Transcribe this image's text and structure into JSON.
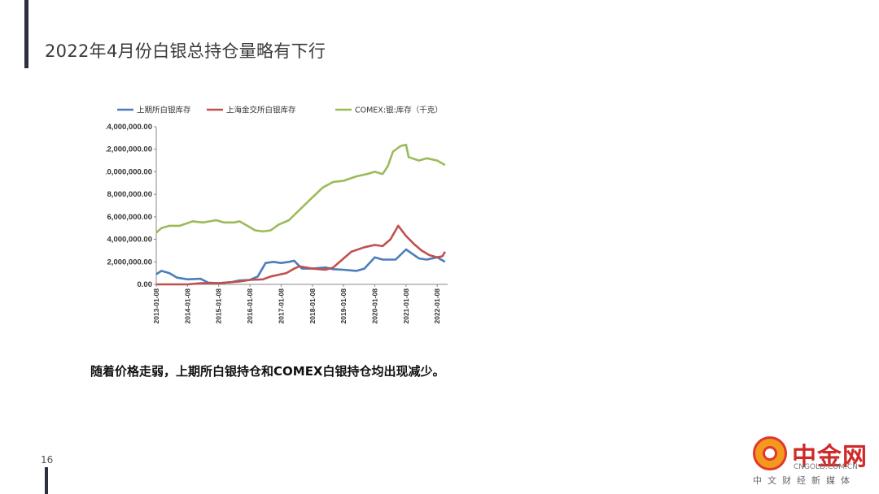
{
  "page": {
    "title": "2022年4月份白银总持仓量略有下行",
    "caption": "随着价格走弱，上期所白银持仓和COMEX白银持仓均出现减少。",
    "page_number": "16"
  },
  "brand": {
    "name": "中金网",
    "url": "CNGOLD.COM.CN",
    "slogan": "中文财经新媒体",
    "colors": {
      "red": "#cf2a2a",
      "orange": "#f39a1e"
    }
  },
  "chart_data": {
    "type": "line",
    "ylim": [
      0,
      14000000
    ],
    "yticks": [
      0,
      2000000,
      4000000,
      6000000,
      8000000,
      10000000,
      12000000,
      14000000
    ],
    "ytick_labels": [
      "0.00",
      "2,000,000.00",
      "4,000,000.00",
      "6,000,000.00",
      "8,000,000.00",
      "10,000,000.00",
      "12,000,000.00",
      "14,000,000.00"
    ],
    "xlim": [
      "2013-01",
      "2022-05"
    ],
    "xtick_labels": [
      "2013-01-08",
      "2014-01-08",
      "2015-01-08",
      "2016-01-08",
      "2017-01-08",
      "2018-01-08",
      "2019-01-08",
      "2020-01-08",
      "2021-01-08",
      "2022-01-08"
    ],
    "grid": false,
    "legend_position": "top",
    "series": [
      {
        "name": "上期所白银库存",
        "color": "#4a7ebb",
        "points": [
          [
            "2013-01",
            900000
          ],
          [
            "2013-03",
            1200000
          ],
          [
            "2013-06",
            1000000
          ],
          [
            "2013-09",
            600000
          ],
          [
            "2014-01",
            450000
          ],
          [
            "2014-06",
            500000
          ],
          [
            "2014-09",
            150000
          ],
          [
            "2015-01",
            100000
          ],
          [
            "2015-06",
            200000
          ],
          [
            "2015-09",
            350000
          ],
          [
            "2016-01",
            400000
          ],
          [
            "2016-04",
            700000
          ],
          [
            "2016-07",
            1900000
          ],
          [
            "2016-10",
            2000000
          ],
          [
            "2017-01",
            1900000
          ],
          [
            "2017-04",
            2000000
          ],
          [
            "2017-06",
            2100000
          ],
          [
            "2017-09",
            1400000
          ],
          [
            "2018-01",
            1400000
          ],
          [
            "2018-06",
            1500000
          ],
          [
            "2018-09",
            1350000
          ],
          [
            "2019-01",
            1300000
          ],
          [
            "2019-06",
            1200000
          ],
          [
            "2019-09",
            1400000
          ],
          [
            "2020-01",
            2400000
          ],
          [
            "2020-04",
            2200000
          ],
          [
            "2020-09",
            2200000
          ],
          [
            "2021-01",
            3100000
          ],
          [
            "2021-06",
            2300000
          ],
          [
            "2021-09",
            2200000
          ],
          [
            "2022-01",
            2400000
          ],
          [
            "2022-04",
            2000000
          ]
        ]
      },
      {
        "name": "上海金交所白银库存",
        "color": "#c0504d",
        "points": [
          [
            "2013-01",
            0
          ],
          [
            "2014-01",
            0
          ],
          [
            "2014-06",
            100000
          ],
          [
            "2015-01",
            100000
          ],
          [
            "2015-09",
            250000
          ],
          [
            "2016-01",
            400000
          ],
          [
            "2016-06",
            450000
          ],
          [
            "2016-09",
            700000
          ],
          [
            "2017-01",
            900000
          ],
          [
            "2017-03",
            1000000
          ],
          [
            "2017-06",
            1400000
          ],
          [
            "2017-08",
            1600000
          ],
          [
            "2018-01",
            1400000
          ],
          [
            "2018-06",
            1300000
          ],
          [
            "2018-09",
            1500000
          ],
          [
            "2019-01",
            2300000
          ],
          [
            "2019-04",
            2900000
          ],
          [
            "2019-09",
            3300000
          ],
          [
            "2020-01",
            3500000
          ],
          [
            "2020-04",
            3400000
          ],
          [
            "2020-07",
            4000000
          ],
          [
            "2020-10",
            5200000
          ],
          [
            "2021-01",
            4300000
          ],
          [
            "2021-04",
            3600000
          ],
          [
            "2021-07",
            3000000
          ],
          [
            "2021-10",
            2600000
          ],
          [
            "2022-01",
            2400000
          ],
          [
            "2022-03",
            2500000
          ],
          [
            "2022-04",
            2900000
          ]
        ]
      },
      {
        "name": "COMEX:银:库存（千克）",
        "color": "#9bbb59",
        "points": [
          [
            "2013-01",
            4600000
          ],
          [
            "2013-03",
            5000000
          ],
          [
            "2013-06",
            5200000
          ],
          [
            "2013-10",
            5200000
          ],
          [
            "2014-03",
            5600000
          ],
          [
            "2014-07",
            5500000
          ],
          [
            "2014-12",
            5700000
          ],
          [
            "2015-03",
            5500000
          ],
          [
            "2015-07",
            5500000
          ],
          [
            "2015-09",
            5600000
          ],
          [
            "2015-12",
            5200000
          ],
          [
            "2016-03",
            4800000
          ],
          [
            "2016-06",
            4700000
          ],
          [
            "2016-09",
            4800000
          ],
          [
            "2016-12",
            5300000
          ],
          [
            "2017-04",
            5700000
          ],
          [
            "2017-08",
            6600000
          ],
          [
            "2017-12",
            7500000
          ],
          [
            "2018-05",
            8600000
          ],
          [
            "2018-09",
            9100000
          ],
          [
            "2019-01",
            9200000
          ],
          [
            "2019-06",
            9600000
          ],
          [
            "2019-10",
            9800000
          ],
          [
            "2020-01",
            10000000
          ],
          [
            "2020-04",
            9800000
          ],
          [
            "2020-06",
            10500000
          ],
          [
            "2020-08",
            11800000
          ],
          [
            "2020-11",
            12300000
          ],
          [
            "2021-01",
            12400000
          ],
          [
            "2021-02",
            11300000
          ],
          [
            "2021-06",
            11000000
          ],
          [
            "2021-09",
            11200000
          ],
          [
            "2022-01",
            11000000
          ],
          [
            "2022-04",
            10600000
          ]
        ]
      }
    ]
  }
}
